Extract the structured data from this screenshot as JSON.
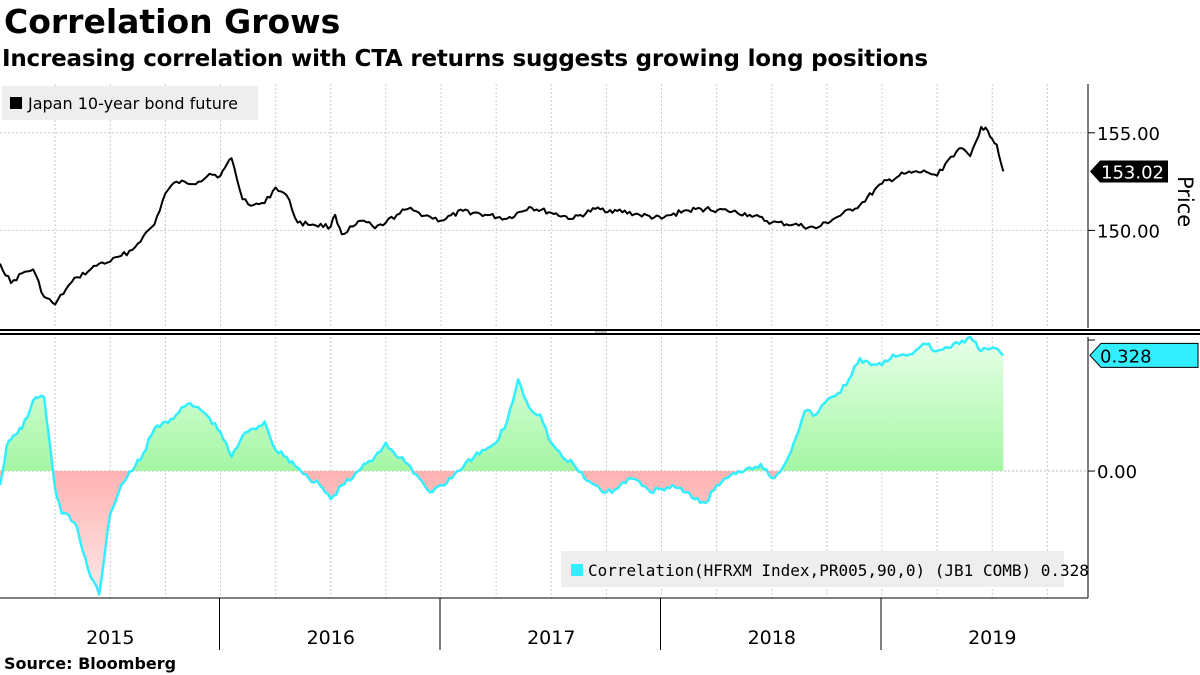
{
  "title": "Correlation Grows",
  "subtitle": "Increasing correlation with CTA returns suggests growing long positions",
  "source": "Source:  Bloomberg",
  "colors": {
    "price_line": "#000000",
    "corr_line": "#33eeff",
    "positive_fill": "#66ee66",
    "negative_fill": "#ff7777",
    "grid": "#cccccc",
    "badge_price": "#000000",
    "badge_corr": "#33eeff"
  },
  "chart_data": [
    {
      "type": "line",
      "legend": "Japan 10-year bond future",
      "ylabel": "Price",
      "yticks": [
        "155.00",
        "150.00"
      ],
      "ytick_values": [
        155,
        150
      ],
      "ylim": [
        145,
        157.5
      ],
      "last_value_label": "153.02",
      "last_value": 153.02,
      "series": [
        {
          "name": "Japan 10-year bond future",
          "x": [
            2015.0,
            2015.05,
            2015.1,
            2015.15,
            2015.2,
            2015.25,
            2015.3,
            2015.35,
            2015.4,
            2015.45,
            2015.5,
            2015.55,
            2015.6,
            2015.65,
            2015.7,
            2015.75,
            2015.8,
            2015.85,
            2015.9,
            2015.95,
            2016.0,
            2016.02,
            2016.05,
            2016.1,
            2016.15,
            2016.2,
            2016.25,
            2016.3,
            2016.35,
            2016.42,
            2016.5,
            2016.52,
            2016.55,
            2016.6,
            2016.65,
            2016.7,
            2016.75,
            2016.8,
            2016.85,
            2016.9,
            2016.95,
            2017.0,
            2017.1,
            2017.2,
            2017.3,
            2017.4,
            2017.5,
            2017.6,
            2017.7,
            2017.8,
            2017.9,
            2018.0,
            2018.1,
            2018.2,
            2018.3,
            2018.4,
            2018.5,
            2018.6,
            2018.7,
            2018.8,
            2018.9,
            2019.0,
            2019.1,
            2019.2,
            2019.25,
            2019.3,
            2019.35,
            2019.4,
            2019.45,
            2019.48,
            2019.52,
            2019.55
          ],
          "values": [
            148.3,
            147.3,
            147.8,
            148.0,
            146.6,
            146.2,
            147.0,
            147.6,
            147.9,
            148.3,
            148.4,
            148.7,
            149.0,
            149.7,
            150.3,
            151.9,
            152.5,
            152.4,
            152.5,
            152.9,
            152.8,
            153.2,
            153.7,
            151.6,
            151.3,
            151.4,
            152.2,
            151.8,
            150.4,
            150.3,
            150.2,
            150.8,
            149.8,
            150.2,
            150.5,
            150.1,
            150.4,
            150.8,
            151.1,
            150.9,
            150.7,
            150.5,
            151.0,
            150.8,
            150.6,
            151.2,
            150.9,
            150.6,
            151.1,
            151.0,
            150.8,
            150.6,
            151.0,
            151.1,
            151.0,
            150.8,
            150.4,
            150.3,
            150.1,
            150.7,
            151.3,
            152.4,
            152.9,
            153.0,
            152.8,
            153.6,
            154.2,
            153.8,
            155.3,
            155.1,
            154.4,
            153.02
          ]
        }
      ]
    },
    {
      "type": "area",
      "legend": "Correlation(HFRXM Index,PR005,90,0) (JB1 COMB) 0.328",
      "yticks": [
        "0.00"
      ],
      "ytick_values": [
        0
      ],
      "ylim": [
        -0.36,
        0.38
      ],
      "last_value_label": "0.328",
      "last_value": 0.328,
      "series": [
        {
          "name": "Correlation(HFRXM Index,PR005,90,0) (JB1 COMB)",
          "x": [
            2015.0,
            2015.03,
            2015.06,
            2015.1,
            2015.15,
            2015.2,
            2015.25,
            2015.28,
            2015.3,
            2015.35,
            2015.4,
            2015.45,
            2015.5,
            2015.55,
            2015.6,
            2015.65,
            2015.7,
            2015.75,
            2015.8,
            2015.85,
            2015.9,
            2015.95,
            2016.0,
            2016.05,
            2016.1,
            2016.15,
            2016.2,
            2016.25,
            2016.3,
            2016.35,
            2016.4,
            2016.45,
            2016.5,
            2016.55,
            2016.6,
            2016.65,
            2016.7,
            2016.75,
            2016.8,
            2016.85,
            2016.9,
            2016.95,
            2017.0,
            2017.05,
            2017.1,
            2017.15,
            2017.2,
            2017.25,
            2017.3,
            2017.35,
            2017.4,
            2017.45,
            2017.5,
            2017.55,
            2017.6,
            2017.65,
            2017.7,
            2017.75,
            2017.8,
            2017.85,
            2017.9,
            2017.95,
            2018.0,
            2018.05,
            2018.1,
            2018.15,
            2018.2,
            2018.25,
            2018.3,
            2018.35,
            2018.4,
            2018.45,
            2018.5,
            2018.55,
            2018.6,
            2018.65,
            2018.7,
            2018.75,
            2018.8,
            2018.85,
            2018.9,
            2018.95,
            2019.0,
            2019.05,
            2019.1,
            2019.15,
            2019.2,
            2019.25,
            2019.3,
            2019.35,
            2019.4,
            2019.45,
            2019.5,
            2019.55
          ],
          "values": [
            -0.04,
            0.07,
            0.1,
            0.12,
            0.2,
            0.21,
            -0.05,
            -0.12,
            -0.12,
            -0.16,
            -0.28,
            -0.35,
            -0.12,
            -0.04,
            0.0,
            0.05,
            0.12,
            0.14,
            0.16,
            0.19,
            0.18,
            0.15,
            0.11,
            0.04,
            0.1,
            0.12,
            0.14,
            0.06,
            0.04,
            0.01,
            -0.02,
            -0.04,
            -0.08,
            -0.04,
            -0.02,
            0.02,
            0.04,
            0.08,
            0.04,
            0.02,
            -0.02,
            -0.06,
            -0.04,
            -0.02,
            0.01,
            0.04,
            0.06,
            0.08,
            0.14,
            0.26,
            0.18,
            0.16,
            0.08,
            0.04,
            0.02,
            -0.02,
            -0.04,
            -0.06,
            -0.05,
            -0.02,
            -0.03,
            -0.06,
            -0.05,
            -0.04,
            -0.06,
            -0.08,
            -0.09,
            -0.04,
            -0.02,
            0.0,
            0.01,
            0.02,
            -0.02,
            0.01,
            0.08,
            0.17,
            0.16,
            0.2,
            0.22,
            0.26,
            0.32,
            0.3,
            0.3,
            0.33,
            0.33,
            0.34,
            0.36,
            0.34,
            0.35,
            0.36,
            0.38,
            0.34,
            0.35,
            0.328
          ]
        }
      ]
    }
  ],
  "xaxis": {
    "categories": [
      "2015",
      "2016",
      "2017",
      "2018",
      "2019"
    ]
  }
}
